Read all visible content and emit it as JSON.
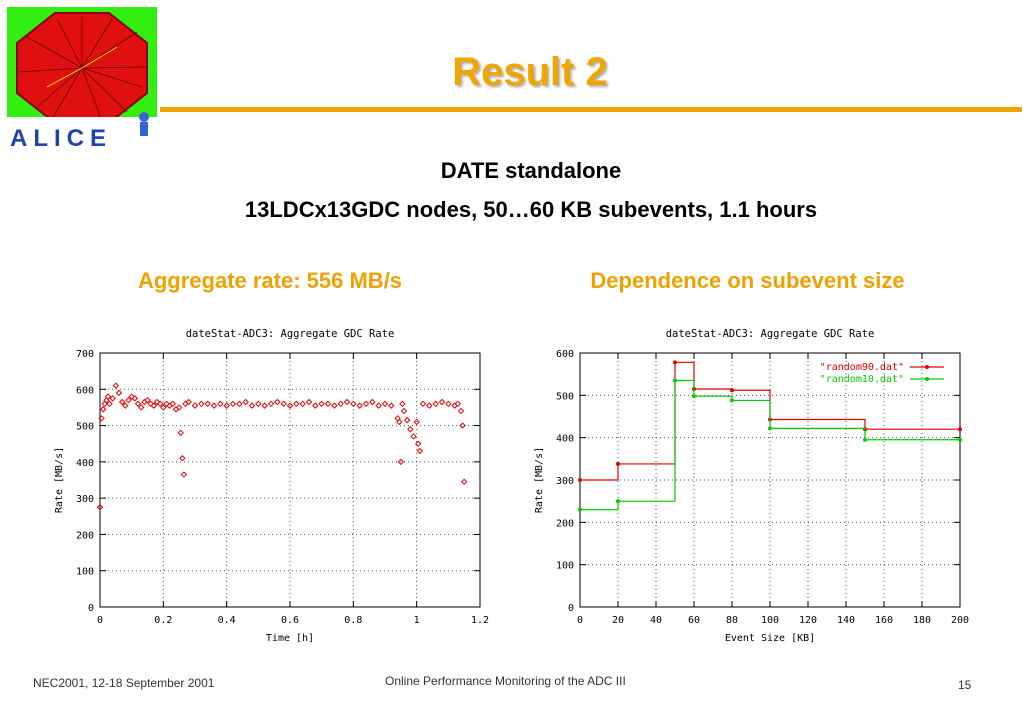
{
  "slide": {
    "title": "Result 2",
    "subtitle_line1": "DATE standalone",
    "subtitle_line2": "13LDCx13GDC nodes, 50…60 KB subevents, 1.1 hours",
    "caption_left": "Aggregate rate: 556 MB/s",
    "caption_right": "Dependence on subevent size",
    "logo_text": "ALICE",
    "footer_left": "NEC2001, 12-18 September 2001",
    "footer_center": "Online Performance Monitoring of the ADC III",
    "page_number": "15",
    "colors": {
      "accent": "#f0a500",
      "red": "#e00000",
      "green": "#00cc00"
    }
  },
  "chart_data": [
    {
      "type": "scatter",
      "title": "dateStat-ADC3: Aggregate GDC Rate",
      "xlabel": "Time [h]",
      "ylabel": "Rate [MB/s]",
      "xlim": [
        0,
        1.2
      ],
      "ylim": [
        0,
        700
      ],
      "xticks": [
        "0",
        "0.2",
        "0.4",
        "0.6",
        "0.8",
        "1",
        "1.2"
      ],
      "yticks": [
        "0",
        "100",
        "200",
        "300",
        "400",
        "500",
        "600",
        "700"
      ],
      "grid": true,
      "series": [
        {
          "color": "#e00000",
          "x": [
            0.0,
            0.005,
            0.01,
            0.015,
            0.02,
            0.025,
            0.03,
            0.04,
            0.05,
            0.06,
            0.07,
            0.08,
            0.09,
            0.1,
            0.11,
            0.12,
            0.13,
            0.14,
            0.15,
            0.16,
            0.17,
            0.18,
            0.19,
            0.2,
            0.21,
            0.22,
            0.23,
            0.24,
            0.25,
            0.255,
            0.26,
            0.265,
            0.27,
            0.28,
            0.3,
            0.32,
            0.34,
            0.36,
            0.38,
            0.4,
            0.42,
            0.44,
            0.46,
            0.48,
            0.5,
            0.52,
            0.54,
            0.56,
            0.58,
            0.6,
            0.62,
            0.64,
            0.66,
            0.68,
            0.7,
            0.72,
            0.74,
            0.76,
            0.78,
            0.8,
            0.82,
            0.84,
            0.86,
            0.88,
            0.9,
            0.92,
            0.94,
            0.945,
            0.95,
            0.955,
            0.96,
            0.97,
            0.98,
            0.99,
            1.0,
            1.005,
            1.01,
            1.02,
            1.04,
            1.06,
            1.08,
            1.1,
            1.12,
            1.13,
            1.14,
            1.145,
            1.15
          ],
          "y": [
            275,
            520,
            545,
            560,
            570,
            580,
            560,
            575,
            610,
            590,
            565,
            555,
            570,
            580,
            575,
            560,
            550,
            565,
            570,
            560,
            555,
            565,
            560,
            550,
            560,
            555,
            560,
            545,
            550,
            480,
            410,
            365,
            560,
            565,
            555,
            560,
            560,
            555,
            560,
            555,
            560,
            560,
            565,
            555,
            560,
            555,
            560,
            565,
            560,
            555,
            560,
            560,
            565,
            555,
            560,
            560,
            555,
            560,
            565,
            560,
            555,
            560,
            565,
            555,
            560,
            555,
            520,
            510,
            400,
            560,
            540,
            515,
            490,
            470,
            510,
            450,
            430,
            560,
            555,
            560,
            565,
            560,
            555,
            560,
            540,
            500,
            345
          ]
        }
      ]
    },
    {
      "type": "line",
      "title": "dateStat-ADC3: Aggregate GDC Rate",
      "xlabel": "Event Size [KB]",
      "ylabel": "Rate [MB/s]",
      "xlim": [
        0,
        200
      ],
      "ylim": [
        0,
        600
      ],
      "xticks": [
        "0",
        "20",
        "40",
        "60",
        "80",
        "100",
        "120",
        "140",
        "160",
        "180",
        "200"
      ],
      "yticks": [
        "0",
        "100",
        "200",
        "300",
        "400",
        "500",
        "600"
      ],
      "grid": true,
      "legend": "top-right",
      "step": true,
      "series": [
        {
          "name": "\"random90.dat\"",
          "color": "#e00000",
          "x": [
            0,
            20,
            50,
            60,
            80,
            100,
            150,
            200
          ],
          "y": [
            300,
            338,
            578,
            515,
            512,
            443,
            420,
            420
          ]
        },
        {
          "name": "\"random10.dat\"",
          "color": "#00cc00",
          "x": [
            0,
            20,
            50,
            60,
            80,
            100,
            150,
            200
          ],
          "y": [
            230,
            250,
            535,
            498,
            488,
            422,
            395,
            395
          ]
        }
      ]
    }
  ]
}
